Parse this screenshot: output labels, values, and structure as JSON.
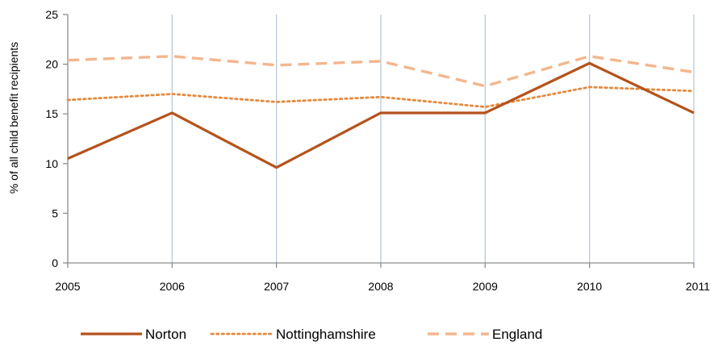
{
  "chart_data": {
    "type": "line",
    "title": "",
    "xlabel": "",
    "ylabel": "% of all child benefit recipients",
    "x": [
      "2005",
      "2006",
      "2007",
      "2008",
      "2009",
      "2010",
      "2011"
    ],
    "ylim": [
      0,
      25
    ],
    "yticks": [
      "0",
      "5",
      "10",
      "15",
      "20",
      "25"
    ],
    "grid": "vertical",
    "legend_position": "bottom",
    "series": [
      {
        "name": "Norton",
        "values": [
          10.5,
          15.1,
          9.6,
          15.1,
          15.1,
          20.1,
          15.1
        ],
        "color": "#B5531C",
        "style": "solid"
      },
      {
        "name": "Nottinghamshire",
        "values": [
          16.4,
          17.0,
          16.2,
          16.7,
          15.7,
          17.7,
          17.3
        ],
        "color": "#E58A3C",
        "style": "dotted"
      },
      {
        "name": "England",
        "values": [
          20.4,
          20.8,
          19.9,
          20.3,
          17.8,
          20.8,
          19.2
        ],
        "color": "#F4B68E",
        "style": "dashed"
      }
    ]
  }
}
